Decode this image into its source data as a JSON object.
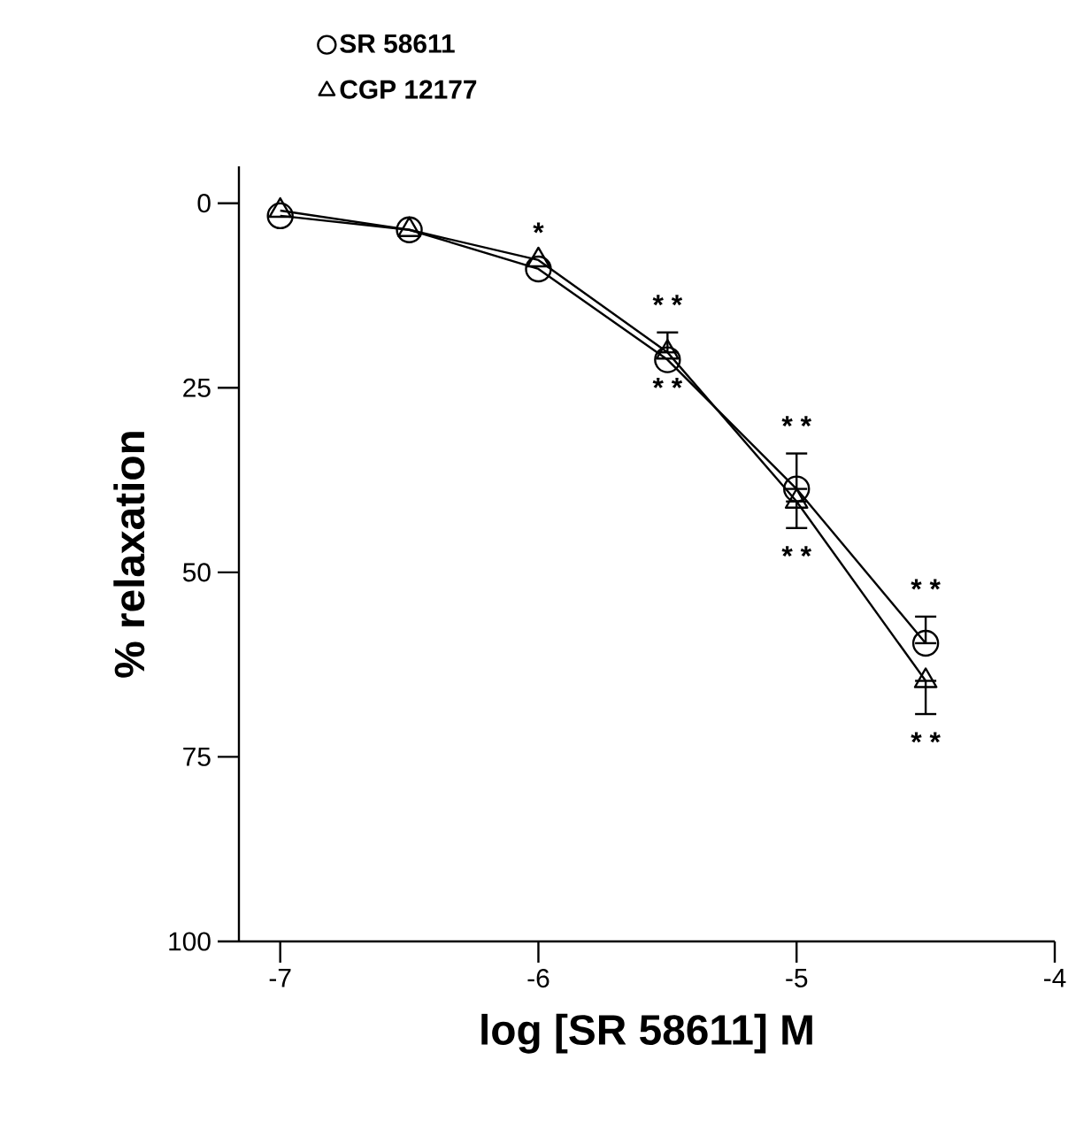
{
  "chart_data": {
    "type": "line",
    "xlabel": "log [SR 58611] M",
    "ylabel": "% relaxation",
    "x": [
      -7,
      -6.5,
      -6,
      -5.5,
      -5,
      -4.5
    ],
    "xlim": [
      -7.16,
      -4
    ],
    "xticks": [
      -7,
      -6,
      -5,
      -4
    ],
    "ylim": [
      100,
      -5
    ],
    "yticks": [
      0,
      25,
      50,
      75,
      100
    ],
    "legend": "top left",
    "line_style": "solid",
    "series": [
      {
        "name": "SR 58611",
        "color": "#000000",
        "marker": "circle",
        "values": [
          1.7,
          3.6,
          8.9,
          21.2,
          38.7,
          59.6
        ],
        "errors": [
          null,
          null,
          null,
          null,
          [
            33.9,
            38.7
          ],
          [
            56,
            59.6
          ]
        ]
      },
      {
        "name": "CGP 12177",
        "color": "#000000",
        "marker": "triangle",
        "values": [
          1,
          3.6,
          7.7,
          20.2,
          40.4,
          64.7
        ],
        "errors": [
          null,
          null,
          null,
          [
            17.5,
            20.2
          ],
          [
            40.4,
            44
          ],
          [
            64.7,
            69.2
          ]
        ]
      }
    ],
    "annotations": [
      {
        "text": "*",
        "x": -6,
        "y": 7.7
      },
      {
        "text": "* *",
        "x": -5.5,
        "y": 20.2
      },
      {
        "text": "* *",
        "x": -5.5,
        "y": 21.2
      },
      {
        "text": "* *",
        "x": -5,
        "y": 38.7
      },
      {
        "text": "* *",
        "x": -5,
        "y": 40.4
      },
      {
        "text": "* *",
        "x": -4.5,
        "y": 59.6
      },
      {
        "text": "* *",
        "x": -4.5,
        "y": 64.7
      }
    ]
  }
}
